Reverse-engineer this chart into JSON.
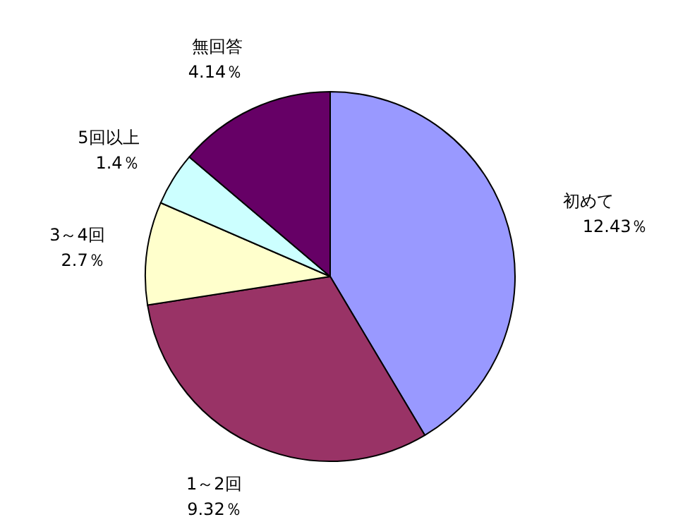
{
  "chart_data": {
    "type": "pie",
    "categories": [
      "初めて",
      "1～2回",
      "3～4回",
      "5回以上",
      "無回答"
    ],
    "values": [
      12.43,
      9.32,
      2.7,
      1.4,
      4.14
    ],
    "colors": [
      "#9999ff",
      "#993366",
      "#ffffcc",
      "#ccffff",
      "#660066"
    ],
    "value_labels": [
      "12.43％",
      "9.32％",
      "2.7％",
      "1.4％",
      "4.14％"
    ]
  }
}
